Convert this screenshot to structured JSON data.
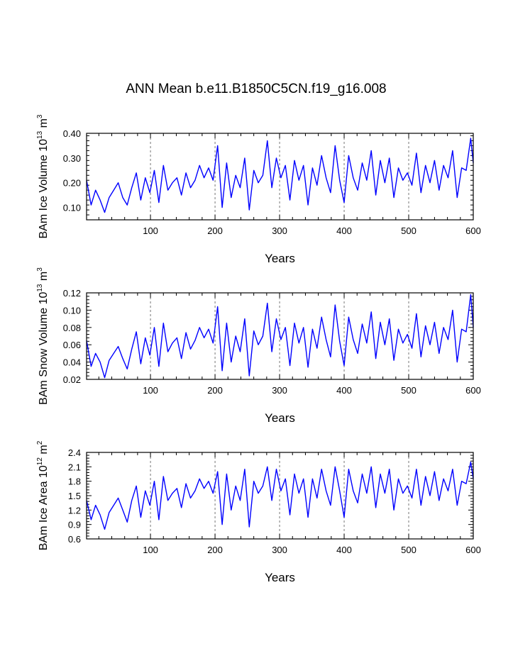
{
  "title": "ANN Mean b.e11.B1850C5CN.f19_g16.008",
  "line_color": "#0000ff",
  "grid_color": "#555555",
  "chart_data": [
    {
      "type": "line",
      "id": "ice-volume",
      "title": "ANN Mean b.e11.B1850C5CN.f19_g16.008",
      "xlabel": "Years",
      "ylabel": {
        "prefix": "BAm Ice Volume 10",
        "sup1": "13",
        "mid": " m",
        "sup2": "3"
      },
      "xlim": [
        1,
        600
      ],
      "ylim": [
        0.05,
        0.4
      ],
      "xticks": [
        100,
        200,
        300,
        400,
        500,
        600
      ],
      "xtick_labels": [
        "100",
        "200",
        "300",
        "400",
        "500",
        "600"
      ],
      "yticks": [
        0.1,
        0.2,
        0.3,
        0.4
      ],
      "ytick_labels": [
        "0.10",
        "0.20",
        "0.30",
        "0.40"
      ],
      "vgrid": [
        100,
        200,
        300,
        400,
        500
      ],
      "series": [
        {
          "name": "BAm Ice Volume",
          "x": [
            1,
            8,
            15,
            22,
            29,
            36,
            43,
            50,
            57,
            64,
            71,
            78,
            85,
            92,
            99,
            106,
            113,
            120,
            127,
            134,
            141,
            148,
            155,
            162,
            169,
            176,
            183,
            190,
            197,
            204,
            211,
            218,
            225,
            232,
            239,
            246,
            253,
            260,
            267,
            274,
            281,
            288,
            295,
            302,
            309,
            316,
            323,
            330,
            337,
            344,
            351,
            358,
            365,
            372,
            379,
            386,
            393,
            400,
            407,
            414,
            421,
            428,
            435,
            442,
            449,
            456,
            463,
            470,
            477,
            484,
            491,
            498,
            505,
            512,
            519,
            526,
            533,
            540,
            547,
            554,
            561,
            568,
            575,
            582,
            589,
            596,
            600
          ],
          "y": [
            0.21,
            0.11,
            0.17,
            0.13,
            0.08,
            0.14,
            0.17,
            0.2,
            0.14,
            0.11,
            0.18,
            0.24,
            0.13,
            0.22,
            0.16,
            0.25,
            0.12,
            0.27,
            0.17,
            0.2,
            0.22,
            0.15,
            0.24,
            0.18,
            0.21,
            0.27,
            0.22,
            0.26,
            0.21,
            0.35,
            0.1,
            0.28,
            0.14,
            0.23,
            0.18,
            0.3,
            0.09,
            0.25,
            0.2,
            0.23,
            0.37,
            0.18,
            0.3,
            0.22,
            0.27,
            0.13,
            0.29,
            0.21,
            0.27,
            0.11,
            0.26,
            0.19,
            0.31,
            0.22,
            0.16,
            0.35,
            0.21,
            0.12,
            0.31,
            0.22,
            0.17,
            0.28,
            0.21,
            0.33,
            0.15,
            0.29,
            0.2,
            0.3,
            0.14,
            0.26,
            0.21,
            0.24,
            0.19,
            0.32,
            0.16,
            0.27,
            0.2,
            0.29,
            0.17,
            0.27,
            0.22,
            0.33,
            0.14,
            0.26,
            0.25,
            0.38,
            0.28
          ]
        }
      ]
    },
    {
      "type": "line",
      "id": "snow-volume",
      "xlabel": "Years",
      "ylabel": {
        "prefix": "BAm Snow Volume 10",
        "sup1": "13",
        "mid": " m",
        "sup2": "3"
      },
      "xlim": [
        1,
        600
      ],
      "ylim": [
        0.02,
        0.12
      ],
      "xticks": [
        100,
        200,
        300,
        400,
        500,
        600
      ],
      "xtick_labels": [
        "100",
        "200",
        "300",
        "400",
        "500",
        "600"
      ],
      "yticks": [
        0.02,
        0.04,
        0.06,
        0.08,
        0.1,
        0.12
      ],
      "ytick_labels": [
        "0.02",
        "0.04",
        "0.06",
        "0.08",
        "0.10",
        "0.12"
      ],
      "vgrid": [
        100,
        200,
        300,
        400,
        500
      ],
      "series": [
        {
          "name": "BAm Snow Volume",
          "x": [
            1,
            8,
            15,
            22,
            29,
            36,
            43,
            50,
            57,
            64,
            71,
            78,
            85,
            92,
            99,
            106,
            113,
            120,
            127,
            134,
            141,
            148,
            155,
            162,
            169,
            176,
            183,
            190,
            197,
            204,
            211,
            218,
            225,
            232,
            239,
            246,
            253,
            260,
            267,
            274,
            281,
            288,
            295,
            302,
            309,
            316,
            323,
            330,
            337,
            344,
            351,
            358,
            365,
            372,
            379,
            386,
            393,
            400,
            407,
            414,
            421,
            428,
            435,
            442,
            449,
            456,
            463,
            470,
            477,
            484,
            491,
            498,
            505,
            512,
            519,
            526,
            533,
            540,
            547,
            554,
            561,
            568,
            575,
            582,
            589,
            596,
            600
          ],
          "y": [
            0.065,
            0.035,
            0.05,
            0.04,
            0.022,
            0.042,
            0.05,
            0.058,
            0.044,
            0.032,
            0.055,
            0.075,
            0.038,
            0.068,
            0.048,
            0.08,
            0.035,
            0.085,
            0.052,
            0.062,
            0.068,
            0.044,
            0.074,
            0.055,
            0.065,
            0.08,
            0.068,
            0.078,
            0.062,
            0.104,
            0.03,
            0.085,
            0.04,
            0.07,
            0.052,
            0.09,
            0.024,
            0.076,
            0.06,
            0.07,
            0.108,
            0.052,
            0.09,
            0.066,
            0.08,
            0.036,
            0.085,
            0.062,
            0.08,
            0.034,
            0.078,
            0.056,
            0.092,
            0.066,
            0.046,
            0.106,
            0.064,
            0.036,
            0.092,
            0.066,
            0.05,
            0.084,
            0.062,
            0.098,
            0.044,
            0.086,
            0.06,
            0.09,
            0.042,
            0.078,
            0.062,
            0.072,
            0.056,
            0.096,
            0.046,
            0.082,
            0.06,
            0.086,
            0.05,
            0.08,
            0.066,
            0.1,
            0.04,
            0.078,
            0.075,
            0.118,
            0.08
          ]
        }
      ]
    },
    {
      "type": "line",
      "id": "ice-area",
      "xlabel": "Years",
      "ylabel": {
        "prefix": "BAm Ice Area 10",
        "sup1": "12",
        "mid": " m",
        "sup2": "2"
      },
      "xlim": [
        1,
        600
      ],
      "ylim": [
        0.6,
        2.4
      ],
      "xticks": [
        100,
        200,
        300,
        400,
        500,
        600
      ],
      "xtick_labels": [
        "100",
        "200",
        "300",
        "400",
        "500",
        "600"
      ],
      "yticks": [
        0.6,
        0.9,
        1.2,
        1.5,
        1.8,
        2.1,
        2.4
      ],
      "ytick_labels": [
        "0.6",
        "0.9",
        "1.2",
        "1.5",
        "1.8",
        "2.1",
        "2.4"
      ],
      "vgrid": [
        100,
        200,
        300,
        400,
        500
      ],
      "series": [
        {
          "name": "BAm Ice Area",
          "x": [
            1,
            8,
            15,
            22,
            29,
            36,
            43,
            50,
            57,
            64,
            71,
            78,
            85,
            92,
            99,
            106,
            113,
            120,
            127,
            134,
            141,
            148,
            155,
            162,
            169,
            176,
            183,
            190,
            197,
            204,
            211,
            218,
            225,
            232,
            239,
            246,
            253,
            260,
            267,
            274,
            281,
            288,
            295,
            302,
            309,
            316,
            323,
            330,
            337,
            344,
            351,
            358,
            365,
            372,
            379,
            386,
            393,
            400,
            407,
            414,
            421,
            428,
            435,
            442,
            449,
            456,
            463,
            470,
            477,
            484,
            491,
            498,
            505,
            512,
            519,
            526,
            533,
            540,
            547,
            554,
            561,
            568,
            575,
            582,
            589,
            596,
            600
          ],
          "y": [
            1.4,
            1.0,
            1.3,
            1.1,
            0.8,
            1.15,
            1.3,
            1.45,
            1.2,
            0.95,
            1.4,
            1.7,
            1.05,
            1.6,
            1.3,
            1.8,
            1.0,
            1.9,
            1.4,
            1.55,
            1.65,
            1.25,
            1.75,
            1.45,
            1.6,
            1.85,
            1.65,
            1.8,
            1.55,
            2.0,
            0.9,
            1.95,
            1.2,
            1.7,
            1.4,
            2.05,
            0.85,
            1.8,
            1.55,
            1.7,
            2.1,
            1.4,
            2.05,
            1.6,
            1.85,
            1.1,
            1.95,
            1.55,
            1.85,
            1.05,
            1.85,
            1.45,
            2.05,
            1.6,
            1.3,
            2.1,
            1.6,
            1.05,
            2.05,
            1.6,
            1.35,
            1.95,
            1.55,
            2.1,
            1.25,
            1.95,
            1.55,
            2.05,
            1.2,
            1.85,
            1.55,
            1.7,
            1.45,
            2.05,
            1.3,
            1.9,
            1.5,
            2.0,
            1.4,
            1.85,
            1.6,
            2.05,
            1.3,
            1.8,
            1.75,
            2.2,
            1.85
          ]
        }
      ]
    }
  ]
}
